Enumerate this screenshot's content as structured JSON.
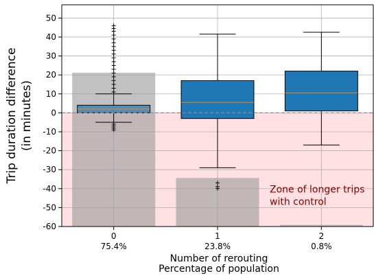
{
  "chart_data": {
    "type": "box",
    "title": "",
    "ylabel_lines": [
      "Trip duration difference",
      "(in minutes)"
    ],
    "xlabel_lines": [
      "Number of rerouting",
      "Percentage of population"
    ],
    "ylim": [
      -60,
      57
    ],
    "yticks": [
      -60,
      -50,
      -40,
      -30,
      -20,
      -10,
      0,
      10,
      20,
      30,
      40,
      50
    ],
    "grid": true,
    "zero_line": 0,
    "zone": {
      "y_from": -60,
      "y_to": 0,
      "color": "#ffe0e3",
      "label_lines": [
        "Zone of longer trips",
        " with control"
      ],
      "label_color": "#8b0000"
    },
    "categories": [
      {
        "label": "0",
        "percent_label": "75.4%"
      },
      {
        "label": "1",
        "percent_label": "23.8%"
      },
      {
        "label": "2",
        "percent_label": "0.8%"
      }
    ],
    "population_bars": {
      "values": [
        75.4,
        23.8,
        0.8
      ],
      "color": "#999999"
    },
    "boxes": [
      {
        "whisker_low": -5,
        "q1": 0,
        "median": 2,
        "q3": 4,
        "whisker_high": 10,
        "outliers_high": [
          11,
          13,
          15,
          17,
          19,
          21,
          23,
          25,
          27,
          29,
          31,
          33,
          35,
          37,
          39,
          41,
          43,
          44.5,
          46
        ],
        "outliers_low": [
          -6,
          -7,
          -8,
          -9
        ]
      },
      {
        "whisker_low": -29,
        "q1": -3,
        "median": 5.5,
        "q3": 17,
        "whisker_high": 41.5,
        "outliers_high": [],
        "outliers_low": [
          -37,
          -39,
          -40
        ]
      },
      {
        "whisker_low": -17,
        "q1": 1,
        "median": 10.5,
        "q3": 22,
        "whisker_high": 42.5,
        "outliers_high": [],
        "outliers_low": []
      }
    ],
    "box_color": "#1f77b4",
    "median_color": "#ff7f0e"
  }
}
